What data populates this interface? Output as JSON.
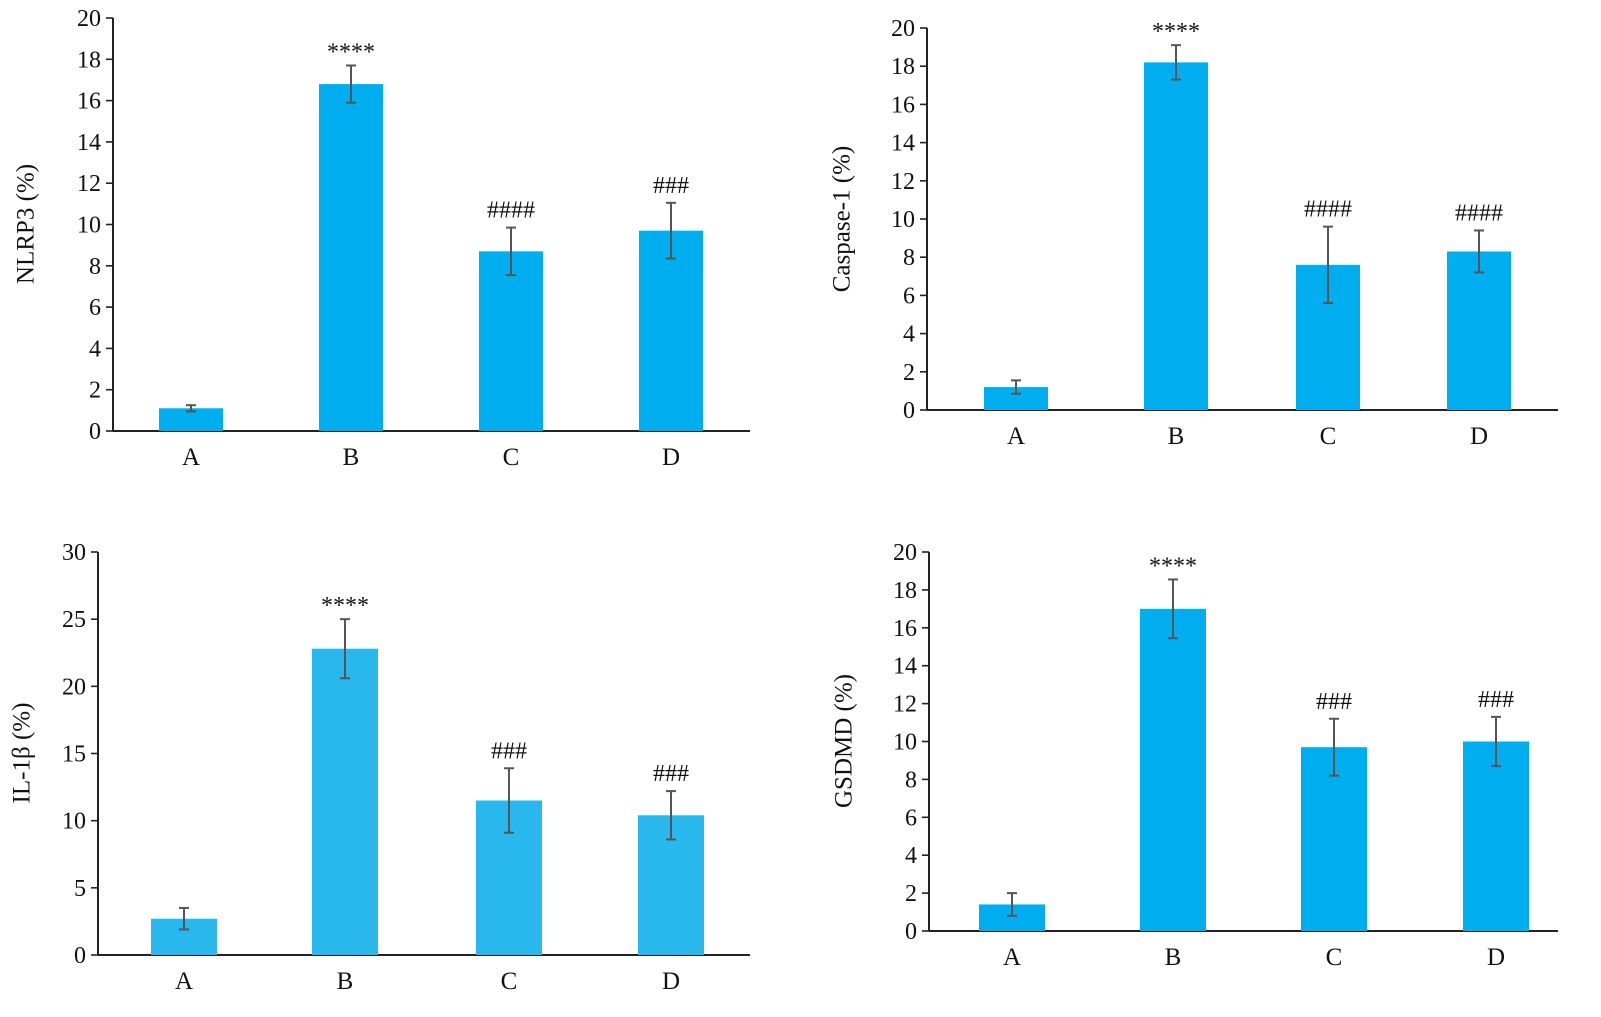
{
  "chart_data": [
    {
      "type": "bar",
      "ylabel": "NLRP3 (%)",
      "categories": [
        "A",
        "B",
        "C",
        "D"
      ],
      "values": [
        1.1,
        16.8,
        8.7,
        9.7
      ],
      "errors": [
        0.15,
        0.9,
        1.15,
        1.35
      ],
      "annotations": [
        "",
        "****",
        "####",
        "###"
      ],
      "ylim": [
        0,
        20
      ],
      "yticks": [
        0,
        2,
        4,
        6,
        8,
        10,
        12,
        14,
        16,
        18,
        20
      ],
      "bar_color": "#00aeef"
    },
    {
      "type": "bar",
      "ylabel": "Caspase-1 (%)",
      "categories": [
        "A",
        "B",
        "C",
        "D"
      ],
      "values": [
        1.2,
        18.2,
        7.6,
        8.3
      ],
      "errors": [
        0.35,
        0.9,
        2.0,
        1.1
      ],
      "annotations": [
        "",
        "****",
        "####",
        "####"
      ],
      "ylim": [
        0,
        20
      ],
      "yticks": [
        0,
        2,
        4,
        6,
        8,
        10,
        12,
        14,
        16,
        18,
        20
      ],
      "bar_color": "#00aeef"
    },
    {
      "type": "bar",
      "ylabel": "IL-1β (%)",
      "categories": [
        "A",
        "B",
        "C",
        "D"
      ],
      "values": [
        2.7,
        22.8,
        11.5,
        10.4
      ],
      "errors": [
        0.8,
        2.2,
        2.4,
        1.8
      ],
      "annotations": [
        "",
        "****",
        "###",
        "###"
      ],
      "ylim": [
        0,
        30
      ],
      "yticks": [
        0,
        5,
        10,
        15,
        20,
        25,
        30
      ],
      "bar_color": "#29b8ee"
    },
    {
      "type": "bar",
      "ylabel": "GSDMD (%)",
      "categories": [
        "A",
        "B",
        "C",
        "D"
      ],
      "values": [
        1.4,
        17.0,
        9.7,
        10.0
      ],
      "errors": [
        0.6,
        1.55,
        1.5,
        1.3
      ],
      "annotations": [
        "",
        "****",
        "###",
        "###"
      ],
      "ylim": [
        0,
        20
      ],
      "yticks": [
        0,
        2,
        4,
        6,
        8,
        10,
        12,
        14,
        16,
        18,
        20
      ],
      "bar_color": "#00aeef"
    }
  ]
}
